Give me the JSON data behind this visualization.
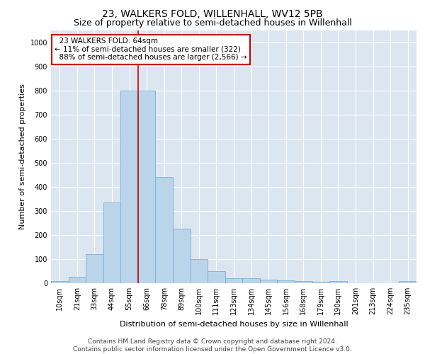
{
  "title": "23, WALKERS FOLD, WILLENHALL, WV12 5PB",
  "subtitle": "Size of property relative to semi-detached houses in Willenhall",
  "xlabel": "Distribution of semi-detached houses by size in Willenhall",
  "ylabel": "Number of semi-detached properties",
  "categories": [
    "10sqm",
    "21sqm",
    "33sqm",
    "44sqm",
    "55sqm",
    "66sqm",
    "78sqm",
    "89sqm",
    "100sqm",
    "111sqm",
    "123sqm",
    "134sqm",
    "145sqm",
    "156sqm",
    "168sqm",
    "179sqm",
    "190sqm",
    "201sqm",
    "213sqm",
    "224sqm",
    "235sqm"
  ],
  "values": [
    8,
    25,
    120,
    335,
    800,
    800,
    440,
    225,
    100,
    50,
    22,
    22,
    15,
    12,
    10,
    5,
    8,
    0,
    0,
    0,
    8
  ],
  "bar_color": "#bad4ea",
  "bar_edge_color": "#7bafd4",
  "property_label": "23 WALKERS FOLD: 64sqm",
  "pct_smaller": 11,
  "n_smaller": 322,
  "pct_larger": 88,
  "n_larger": 2566,
  "vline_bin_index": 4.5,
  "annotation_box_color": "#ffffff",
  "annotation_box_edge": "#cc0000",
  "ylim": [
    0,
    1050
  ],
  "yticks": [
    0,
    100,
    200,
    300,
    400,
    500,
    600,
    700,
    800,
    900,
    1000
  ],
  "footnote": "Contains HM Land Registry data © Crown copyright and database right 2024.\nContains public sector information licensed under the Open Government Licence v3.0.",
  "bg_color": "#dce6f1",
  "title_fontsize": 10,
  "subtitle_fontsize": 9,
  "axis_label_fontsize": 8,
  "tick_fontsize": 7,
  "annotation_fontsize": 7.5,
  "footnote_fontsize": 6.5
}
